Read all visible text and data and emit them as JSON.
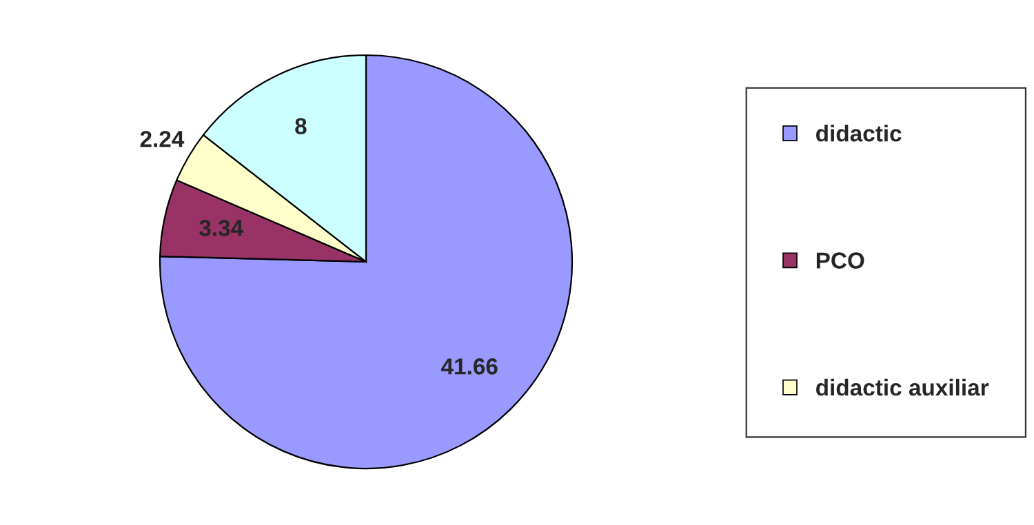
{
  "chart_data": {
    "type": "pie",
    "categories": [
      "didactic",
      "PCO",
      "didactic auxiliar",
      null
    ],
    "values": [
      41.66,
      3.34,
      2.24,
      8
    ],
    "colors": [
      "#9999ff",
      "#993366",
      "#ffffcc",
      "#ccffff"
    ],
    "data_labels": true,
    "legend": "right"
  }
}
